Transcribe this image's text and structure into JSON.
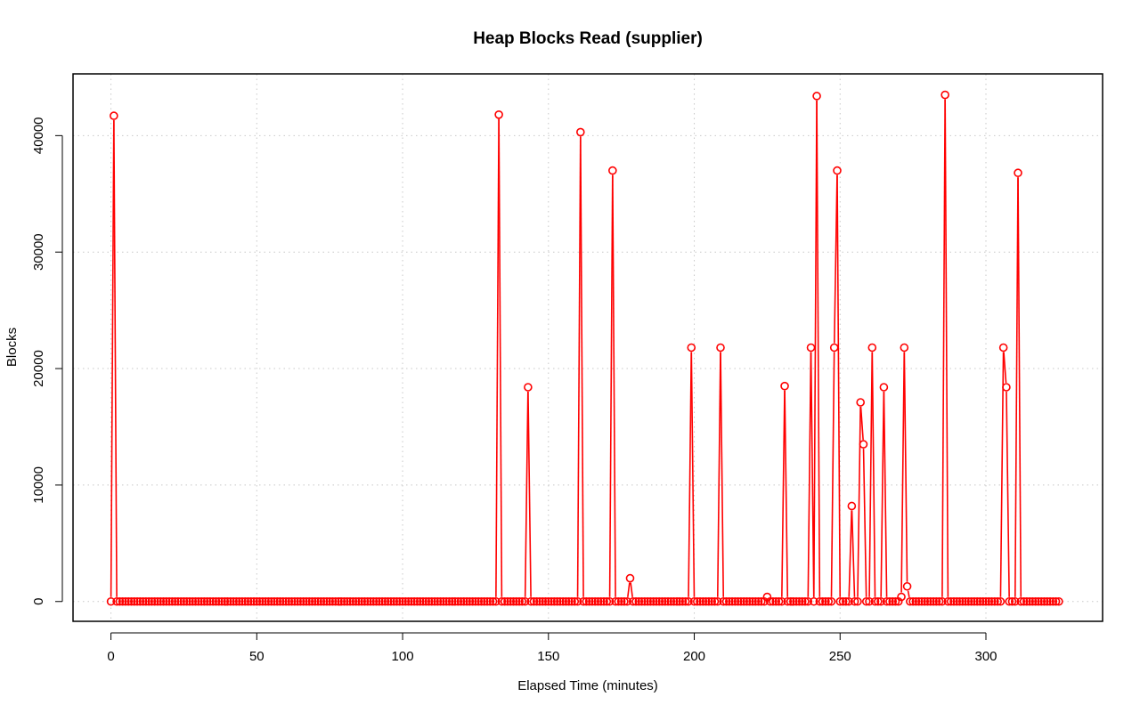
{
  "chart_data": {
    "type": "line",
    "title": "Heap Blocks Read (supplier)",
    "xlabel": "Elapsed Time (minutes)",
    "ylabel": "Blocks",
    "xlim": [
      -13,
      340
    ],
    "ylim": [
      -1700,
      45300
    ],
    "x_ticks": [
      0,
      50,
      100,
      150,
      200,
      250,
      300
    ],
    "x_tick_labels": [
      "0",
      "50",
      "100",
      "150",
      "200",
      "250",
      "300"
    ],
    "y_ticks": [
      0,
      10000,
      20000,
      30000,
      40000
    ],
    "y_tick_labels": [
      "0",
      "10000",
      "20000",
      "30000",
      "40000"
    ],
    "grid": true,
    "legend": "none",
    "x_start": 0,
    "x_step": 1,
    "x_end": 325,
    "baseline": 0,
    "series": [
      {
        "color": "#ff0000",
        "points": [
          {
            "x": 1,
            "y": 41700
          },
          {
            "x": 133,
            "y": 41800
          },
          {
            "x": 143,
            "y": 18400
          },
          {
            "x": 161,
            "y": 40300
          },
          {
            "x": 172,
            "y": 37000
          },
          {
            "x": 178,
            "y": 2000
          },
          {
            "x": 199,
            "y": 21800
          },
          {
            "x": 209,
            "y": 21800
          },
          {
            "x": 225,
            "y": 400
          },
          {
            "x": 231,
            "y": 18500
          },
          {
            "x": 240,
            "y": 21800
          },
          {
            "x": 242,
            "y": 43400
          },
          {
            "x": 248,
            "y": 21800
          },
          {
            "x": 249,
            "y": 37000
          },
          {
            "x": 254,
            "y": 8200
          },
          {
            "x": 257,
            "y": 17100
          },
          {
            "x": 258,
            "y": 13500
          },
          {
            "x": 261,
            "y": 21800
          },
          {
            "x": 265,
            "y": 18400
          },
          {
            "x": 271,
            "y": 400
          },
          {
            "x": 272,
            "y": 21800
          },
          {
            "x": 273,
            "y": 1300
          },
          {
            "x": 286,
            "y": 43500
          },
          {
            "x": 306,
            "y": 21800
          },
          {
            "x": 307,
            "y": 18400
          },
          {
            "x": 311,
            "y": 36800
          }
        ]
      }
    ]
  }
}
